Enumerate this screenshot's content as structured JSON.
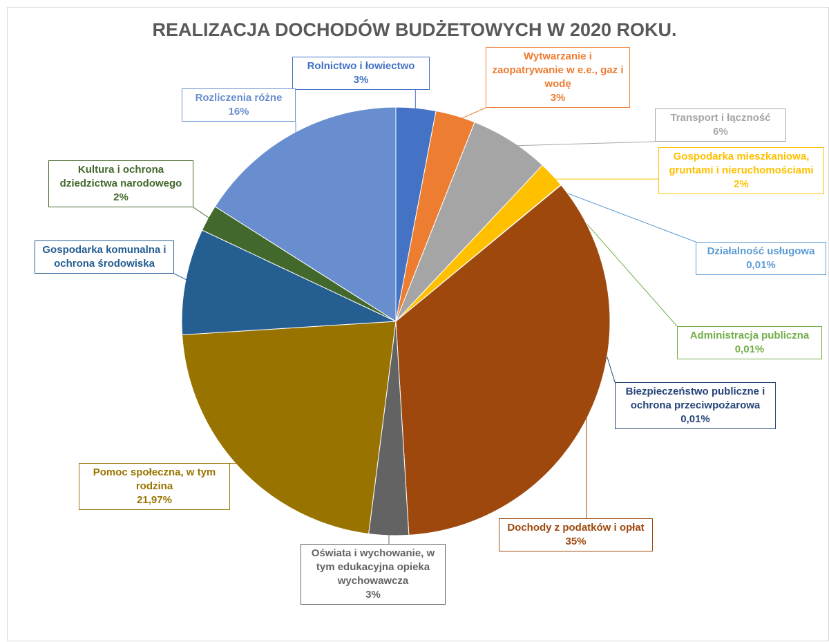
{
  "chart_data": {
    "type": "pie",
    "title": "REALIZACJA DOCHODÓW BUDŻETOWYCH W 2020 ROKU.",
    "categories": [
      "Rolnictwo i łowiectwo",
      "Wytwarzanie i zaopatrywanie w e.e., gaz i wodę",
      "Transport i łączność",
      "Gospodarka mieszkaniowa, gruntami i nieruchomościami",
      "Działalność usługowa",
      "Administracja publiczna",
      "Biezpieczeństwo publiczne i ochrona przeciwpożarowa",
      "Dochody z podatków i opłat",
      "Oświata i wychowanie, w tym edukacyjna opieka wychowawcza",
      "Pomoc społeczna, w tym rodzina",
      "Gospodarka komunalna i ochrona środowiska",
      "Kultura i ochrona dziedzictwa narodowego",
      "Rozliczenia różne"
    ],
    "values": [
      3,
      3,
      6,
      2,
      0.01,
      0.01,
      0.01,
      35,
      3,
      21.97,
      8,
      2,
      16
    ],
    "value_labels": [
      "3%",
      "3%",
      "6%",
      "2%",
      "0,01%",
      "0,01%",
      "0,01%",
      "35%",
      "3%",
      "21,97%",
      null,
      "2%",
      "16%"
    ],
    "colors": [
      "#4472c4",
      "#ed7d31",
      "#a5a5a5",
      "#ffc000",
      "#5b9bd5",
      "#70ad47",
      "#264478",
      "#9e480e",
      "#636363",
      "#997300",
      "#255e91",
      "#43682b",
      "#698ed0"
    ]
  }
}
